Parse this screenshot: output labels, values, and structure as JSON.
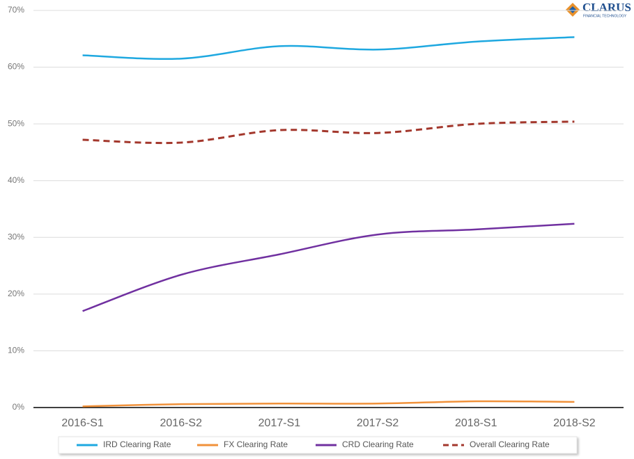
{
  "chart_data": {
    "type": "line",
    "logo": {
      "name": "CLARUS",
      "tagline": "FINANCIAL TECHNOLOGY"
    },
    "categories": [
      "2016-S1",
      "2016-S2",
      "2017-S1",
      "2017-S2",
      "2018-S1",
      "2018-S2"
    ],
    "series": [
      {
        "name": "IRD Clearing Rate",
        "color": "#1ea8e0",
        "style": "solid",
        "values": [
          62.1,
          61.5,
          63.7,
          63.1,
          64.5,
          65.3
        ]
      },
      {
        "name": "FX Clearing Rate",
        "color": "#f0913a",
        "style": "solid",
        "values": [
          0.2,
          0.6,
          0.7,
          0.7,
          1.1,
          1.0
        ]
      },
      {
        "name": "CRD Clearing Rate",
        "color": "#7030a0",
        "style": "solid",
        "values": [
          17.0,
          23.4,
          27.0,
          30.5,
          31.4,
          32.4
        ]
      },
      {
        "name": "Overall Clearing Rate",
        "color": "#a3372c",
        "style": "dashed",
        "values": [
          47.2,
          46.7,
          48.9,
          48.4,
          50.0,
          50.4
        ]
      }
    ],
    "ylim": [
      0,
      70
    ],
    "yticks": [
      {
        "value": 0,
        "label": "0%"
      },
      {
        "value": 10,
        "label": "10%"
      },
      {
        "value": 20,
        "label": "20%"
      },
      {
        "value": 30,
        "label": "30%"
      },
      {
        "value": 40,
        "label": "40%"
      },
      {
        "value": 50,
        "label": "50%"
      },
      {
        "value": 60,
        "label": "60%"
      },
      {
        "value": 70,
        "label": "70%"
      }
    ],
    "grid": true,
    "legend": "bottom"
  }
}
